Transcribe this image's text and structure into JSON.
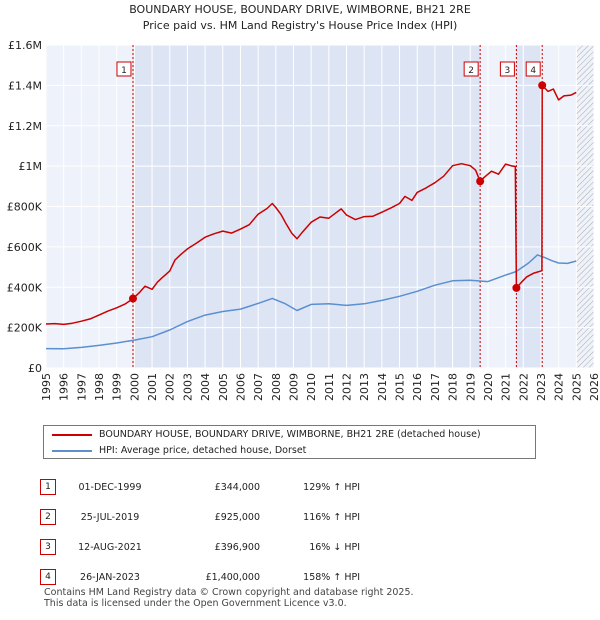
{
  "chart_data": {
    "type": "line",
    "title": "BOUNDARY HOUSE, BOUNDARY DRIVE, WIMBORNE, BH21 2RE",
    "subtitle": "Price paid vs. HM Land Registry's House Price Index (HPI)",
    "xlim": [
      1995,
      2026
    ],
    "ylim": [
      0,
      1600000
    ],
    "x_ticks": [
      1995,
      1996,
      1997,
      1998,
      1999,
      2000,
      2001,
      2002,
      2003,
      2004,
      2005,
      2006,
      2007,
      2008,
      2009,
      2010,
      2011,
      2012,
      2013,
      2014,
      2015,
      2016,
      2017,
      2018,
      2019,
      2020,
      2021,
      2022,
      2023,
      2024,
      2025,
      2026
    ],
    "y_ticks": [
      {
        "value": 0,
        "label": "£0"
      },
      {
        "value": 200000,
        "label": "£200K"
      },
      {
        "value": 400000,
        "label": "£400K"
      },
      {
        "value": 600000,
        "label": "£600K"
      },
      {
        "value": 800000,
        "label": "£800K"
      },
      {
        "value": 1000000,
        "label": "£1M"
      },
      {
        "value": 1200000,
        "label": "£1.2M"
      },
      {
        "value": 1400000,
        "label": "£1.4M"
      },
      {
        "value": 1600000,
        "label": "£1.6M"
      }
    ],
    "forecast_from": 2025.0,
    "series": [
      {
        "name": "BOUNDARY HOUSE, BOUNDARY DRIVE, WIMBORNE, BH21 2RE (detached house)",
        "color": "#cc0000",
        "points": [
          [
            1995,
            218000
          ],
          [
            1995.5,
            220000
          ],
          [
            1996,
            216000
          ],
          [
            1996.5,
            222000
          ],
          [
            1997,
            232000
          ],
          [
            1997.5,
            243000
          ],
          [
            1998,
            262000
          ],
          [
            1998.5,
            282000
          ],
          [
            1999,
            298000
          ],
          [
            1999.5,
            318000
          ],
          [
            1999.92,
            344000
          ],
          [
            2000.3,
            375000
          ],
          [
            2000.6,
            405000
          ],
          [
            2001,
            390000
          ],
          [
            2001.3,
            425000
          ],
          [
            2001.6,
            450000
          ],
          [
            2002,
            480000
          ],
          [
            2002.3,
            535000
          ],
          [
            2002.6,
            560000
          ],
          [
            2003,
            590000
          ],
          [
            2003.5,
            618000
          ],
          [
            2004,
            648000
          ],
          [
            2004.5,
            665000
          ],
          [
            2005,
            678000
          ],
          [
            2005.5,
            668000
          ],
          [
            2006,
            688000
          ],
          [
            2006.5,
            710000
          ],
          [
            2007,
            762000
          ],
          [
            2007.5,
            790000
          ],
          [
            2007.8,
            815000
          ],
          [
            2008,
            795000
          ],
          [
            2008.3,
            760000
          ],
          [
            2008.6,
            712000
          ],
          [
            2008.9,
            668000
          ],
          [
            2009.2,
            640000
          ],
          [
            2009.5,
            672000
          ],
          [
            2010,
            722000
          ],
          [
            2010.5,
            748000
          ],
          [
            2011,
            742000
          ],
          [
            2011.3,
            762000
          ],
          [
            2011.7,
            788000
          ],
          [
            2012,
            758000
          ],
          [
            2012.5,
            735000
          ],
          [
            2013,
            750000
          ],
          [
            2013.5,
            752000
          ],
          [
            2014,
            772000
          ],
          [
            2014.5,
            792000
          ],
          [
            2015,
            815000
          ],
          [
            2015.3,
            850000
          ],
          [
            2015.7,
            830000
          ],
          [
            2016,
            870000
          ],
          [
            2016.5,
            892000
          ],
          [
            2017,
            918000
          ],
          [
            2017.5,
            950000
          ],
          [
            2018,
            1002000
          ],
          [
            2018.5,
            1012000
          ],
          [
            2019,
            1002000
          ],
          [
            2019.3,
            980000
          ],
          [
            2019.56,
            925000
          ],
          [
            2019.8,
            945000
          ],
          [
            2020.2,
            975000
          ],
          [
            2020.6,
            960000
          ],
          [
            2021,
            1010000
          ],
          [
            2021.3,
            1002000
          ],
          [
            2021.55,
            998000
          ],
          [
            2021.61,
            396900
          ],
          [
            2021.9,
            425000
          ],
          [
            2022.2,
            452000
          ],
          [
            2022.6,
            470000
          ],
          [
            2023.05,
            482000
          ],
          [
            2023.07,
            1400000
          ],
          [
            2023.4,
            1370000
          ],
          [
            2023.7,
            1382000
          ],
          [
            2024,
            1328000
          ],
          [
            2024.3,
            1348000
          ],
          [
            2024.7,
            1352000
          ],
          [
            2025,
            1365000
          ]
        ]
      },
      {
        "name": "HPI: Average price, detached house, Dorset",
        "color": "#5b8fd0",
        "points": [
          [
            1995,
            96000
          ],
          [
            1996,
            95000
          ],
          [
            1997,
            102000
          ],
          [
            1998,
            112000
          ],
          [
            1999,
            124000
          ],
          [
            2000,
            138000
          ],
          [
            2001,
            155000
          ],
          [
            2002,
            188000
          ],
          [
            2003,
            230000
          ],
          [
            2004,
            262000
          ],
          [
            2005,
            280000
          ],
          [
            2006,
            292000
          ],
          [
            2007,
            320000
          ],
          [
            2007.8,
            345000
          ],
          [
            2008.5,
            320000
          ],
          [
            2009.2,
            285000
          ],
          [
            2010,
            315000
          ],
          [
            2011,
            318000
          ],
          [
            2012,
            310000
          ],
          [
            2013,
            318000
          ],
          [
            2014,
            335000
          ],
          [
            2015,
            355000
          ],
          [
            2016,
            380000
          ],
          [
            2017,
            410000
          ],
          [
            2018,
            432000
          ],
          [
            2019,
            435000
          ],
          [
            2020,
            428000
          ],
          [
            2021,
            460000
          ],
          [
            2021.6,
            478000
          ],
          [
            2022.3,
            520000
          ],
          [
            2022.8,
            560000
          ],
          [
            2023.2,
            548000
          ],
          [
            2023.6,
            532000
          ],
          [
            2024,
            520000
          ],
          [
            2024.5,
            518000
          ],
          [
            2025,
            530000
          ]
        ]
      }
    ],
    "sales": [
      {
        "label": "1",
        "x": 1999.92,
        "y": 344000
      },
      {
        "label": "2",
        "x": 2019.56,
        "y": 925000
      },
      {
        "label": "3",
        "x": 2021.61,
        "y": 396900
      },
      {
        "label": "4",
        "x": 2023.07,
        "y": 1400000
      }
    ]
  },
  "legend": {
    "property_label": "BOUNDARY HOUSE, BOUNDARY DRIVE, WIMBORNE, BH21 2RE (detached house)",
    "hpi_label": "HPI: Average price, detached house, Dorset",
    "property_color": "#cc0000",
    "hpi_color": "#5b8fd0"
  },
  "transactions": [
    {
      "num": "1",
      "date": "01-DEC-1999",
      "price": "£344,000",
      "hpi": "129% ↑ HPI"
    },
    {
      "num": "2",
      "date": "25-JUL-2019",
      "price": "£925,000",
      "hpi": "116% ↑ HPI"
    },
    {
      "num": "3",
      "date": "12-AUG-2021",
      "price": "£396,900",
      "hpi": "16% ↓ HPI"
    },
    {
      "num": "4",
      "date": "26-JAN-2023",
      "price": "£1,400,000",
      "hpi": "158% ↑ HPI"
    }
  ],
  "footer": {
    "line1": "Contains HM Land Registry data © Crown copyright and database right 2025.",
    "line2": "This data is licensed under the Open Government Licence v3.0."
  }
}
